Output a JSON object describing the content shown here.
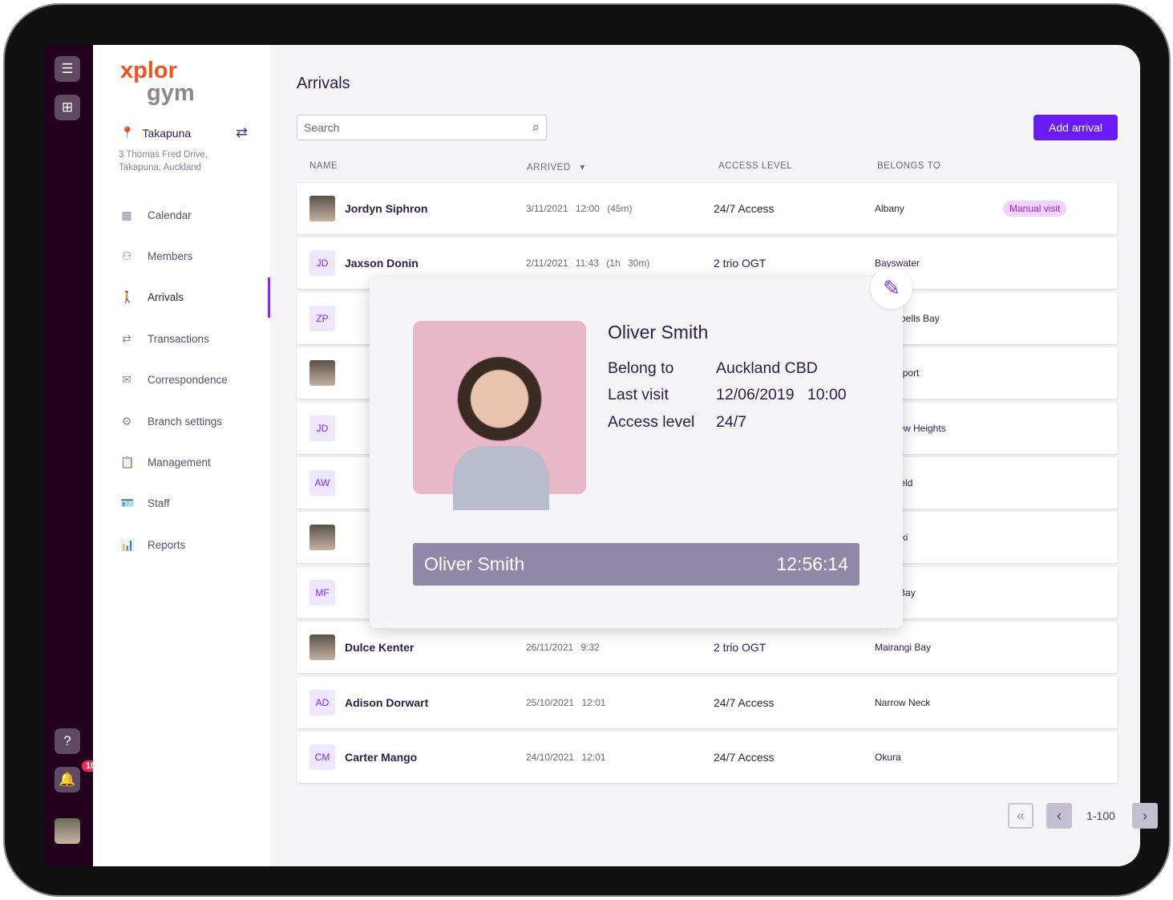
{
  "brand": {
    "logo_top": "xplor",
    "logo_bottom": "gym",
    "accent": "#6a1bf5",
    "logo_color": "#f3531f"
  },
  "location": {
    "name": "Takapuna",
    "address_line1": "3 Thomas Fred Drive,",
    "address_line2": "Takapuna, Auckland"
  },
  "rail": {
    "notification_count": "10"
  },
  "nav": [
    {
      "icon": "calendar-icon",
      "glyph": "▦",
      "label": "Calendar"
    },
    {
      "icon": "members-icon",
      "glyph": "⚇",
      "label": "Members"
    },
    {
      "icon": "walking-icon",
      "glyph": "🚶",
      "label": "Arrivals",
      "active": true
    },
    {
      "icon": "transactions-icon",
      "glyph": "⇄",
      "label": "Transactions"
    },
    {
      "icon": "correspondence-icon",
      "glyph": "✉",
      "label": "Correspondence"
    },
    {
      "icon": "settings-icon",
      "glyph": "⚙",
      "label": "Branch settings"
    },
    {
      "icon": "clipboard-icon",
      "glyph": "📋",
      "label": "Management"
    },
    {
      "icon": "id-card-icon",
      "glyph": "🪪",
      "label": "Staff"
    },
    {
      "icon": "chart-icon",
      "glyph": "📊",
      "label": "Reports"
    }
  ],
  "page": {
    "title": "Arrivals",
    "search_placeholder": "Search",
    "add_label": "Add arrival"
  },
  "columns": {
    "name": "NAME",
    "arrived": "ARRIVED",
    "access": "ACCESS LEVEL",
    "belongs": "BELONGS TO"
  },
  "rows": [
    {
      "initials": "",
      "photo": true,
      "name": "Jordyn Siphron",
      "arrived": "3/11/2021 12:00 (45m)",
      "access": "24/7 Access",
      "belongs": "Albany",
      "tag": "Manual visit"
    },
    {
      "initials": "JD",
      "name": "Jaxson Donin",
      "arrived": "2/11/2021 11:43 (1h 30m)",
      "access": "2 trio OGT",
      "belongs": "Bayswater"
    },
    {
      "initials": "ZP",
      "belongs": "Campbells Bay"
    },
    {
      "initials": "",
      "photo": true,
      "belongs": "Devonport"
    },
    {
      "initials": "JD",
      "belongs": "Fairview Heights"
    },
    {
      "initials": "AW",
      "belongs": "Glenfield"
    },
    {
      "initials": "",
      "photo": true,
      "belongs": "Hauraki"
    },
    {
      "initials": "MF",
      "belongs": "Long Bay"
    },
    {
      "initials": "",
      "photo": true,
      "name": "Dulce Kenter",
      "arrived": "26/11/2021 9:32",
      "access": "2 trio OGT",
      "belongs": "Mairangi Bay"
    },
    {
      "initials": "AD",
      "name": "Adison Dorwart",
      "arrived": "25/10/2021 12:01",
      "access": "24/7 Access",
      "belongs": "Narrow Neck"
    },
    {
      "initials": "CM",
      "name": "Carter Mango",
      "arrived": "24/10/2021 12:01",
      "access": "24/7 Access",
      "belongs": "Okura"
    }
  ],
  "popup": {
    "name": "Oliver Smith",
    "belong_label": "Belong to",
    "belong_value": "Auckland CBD",
    "visit_label": "Last visit",
    "visit_value": "12/06/2019   10:00",
    "access_label": "Access level",
    "access_value": "24/7",
    "bar_name": "Oliver Smith",
    "bar_time": "12:56:14"
  },
  "pagination": {
    "range": "1-100"
  }
}
